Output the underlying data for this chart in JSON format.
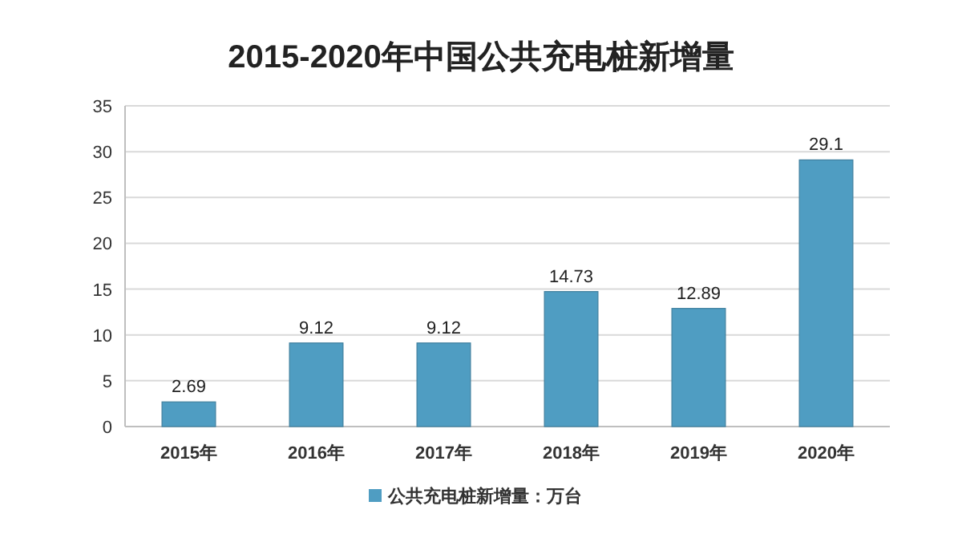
{
  "chart_data": {
    "type": "bar",
    "title": "2015-2020年中国公共充电桩新增量",
    "categories": [
      "2015年",
      "2016年",
      "2017年",
      "2018年",
      "2019年",
      "2020年"
    ],
    "series": [
      {
        "name": "公共充电桩新增量：万台",
        "color": "#4f9dc2",
        "values": [
          2.69,
          9.12,
          9.12,
          14.73,
          12.89,
          29.1
        ]
      }
    ],
    "ylim": [
      0,
      35
    ],
    "yticks": [
      0,
      5,
      10,
      15,
      20,
      25,
      30,
      35
    ],
    "grid": "y",
    "legend": "bottom",
    "data_labels": true
  }
}
